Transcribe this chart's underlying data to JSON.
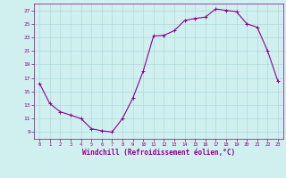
{
  "x": [
    0,
    1,
    2,
    3,
    4,
    5,
    6,
    7,
    8,
    9,
    10,
    11,
    12,
    13,
    14,
    15,
    16,
    17,
    18,
    19,
    20,
    21,
    22,
    23
  ],
  "y": [
    16.2,
    13.2,
    12.0,
    11.5,
    11.0,
    9.5,
    9.2,
    9.0,
    11.0,
    14.0,
    18.0,
    23.2,
    23.3,
    24.0,
    25.5,
    25.8,
    26.0,
    27.2,
    27.0,
    26.8,
    25.0,
    24.5,
    21.0,
    16.5
  ],
  "line_color": "#8B008B",
  "marker": "+",
  "bg_color": "#d0f0f0",
  "grid_color": "#b0dada",
  "xlabel": "Windchill (Refroidissement éolien,°C)",
  "xlabel_color": "#8B008B",
  "tick_color": "#8B008B",
  "ylim": [
    8,
    28
  ],
  "xlim": [
    -0.5,
    23.5
  ],
  "yticks": [
    9,
    11,
    13,
    15,
    17,
    19,
    21,
    23,
    25,
    27
  ],
  "xticks": [
    0,
    1,
    2,
    3,
    4,
    5,
    6,
    7,
    8,
    9,
    10,
    11,
    12,
    13,
    14,
    15,
    16,
    17,
    18,
    19,
    20,
    21,
    22,
    23
  ],
  "figsize": [
    3.2,
    2.0
  ],
  "dpi": 100
}
